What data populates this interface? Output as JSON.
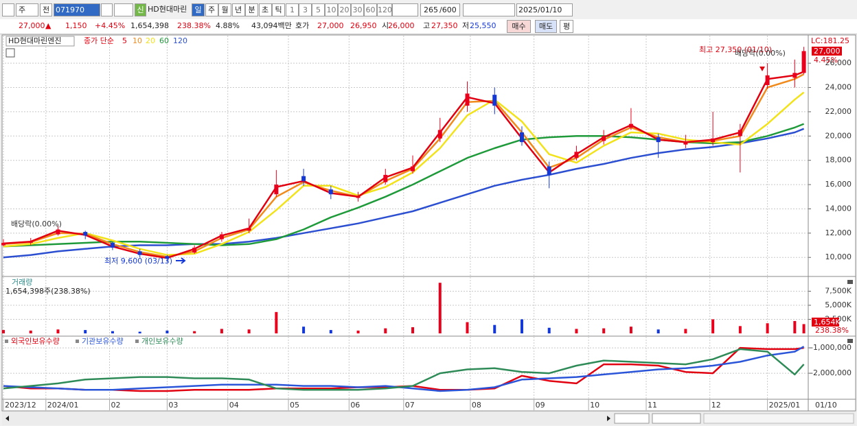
{
  "toolbar": {
    "tabs": [
      "주",
      "전"
    ],
    "code": "071970",
    "market_tag": "신",
    "name": "HD현대마린",
    "periods": [
      "일",
      "주",
      "월",
      "년",
      "분",
      "초",
      "틱"
    ],
    "intervals": [
      "1",
      "3",
      "5",
      "10",
      "20",
      "30",
      "60",
      "120"
    ],
    "count": "265",
    "max": "/600",
    "date": "2025/01/10"
  },
  "quote_bar": {
    "price": "27,000",
    "arrow": "▲",
    "change": "1,150",
    "change_rate": "+4.45%",
    "volume": "1,654,398",
    "volume_ratio": "238.38%",
    "turnover": "4.88%",
    "amount": "43,094백만",
    "ask_label": "호가",
    "ask": "27,000",
    "bid": "26,950",
    "open_label": "시",
    "open": "26,000",
    "high_label": "고",
    "high": "27,350",
    "low_label": "저",
    "low": "25,550",
    "buttons": [
      "매수",
      "매도",
      "평"
    ]
  },
  "chart_data": [
    {
      "type": "candlestick",
      "title": "HD현대마린엔진",
      "ma_label": "종가 단순",
      "x": [
        0,
        9,
        18,
        27,
        36,
        45,
        54,
        63,
        72,
        81,
        90,
        99,
        108,
        117,
        126,
        135,
        144,
        153,
        162,
        171,
        180,
        189,
        198,
        207,
        216,
        225,
        234,
        243,
        252,
        261,
        264
      ],
      "open": [
        11000,
        11200,
        11900,
        12100,
        11200,
        10500,
        10100,
        10400,
        11500,
        12200,
        15200,
        16700,
        15600,
        14900,
        16200,
        17100,
        19800,
        22500,
        23400,
        20300,
        17500,
        18200,
        19600,
        20700,
        19900,
        19300,
        19500,
        20000,
        24200,
        24800,
        25200
      ],
      "high": [
        11500,
        11600,
        12600,
        12200,
        11300,
        10700,
        10200,
        11000,
        12100,
        13200,
        17200,
        17300,
        15900,
        15400,
        17300,
        18400,
        21500,
        24500,
        24000,
        20800,
        17900,
        19200,
        20500,
        22300,
        20200,
        20100,
        22000,
        21000,
        26000,
        26300,
        27350
      ],
      "low": [
        10900,
        11000,
        11800,
        11500,
        10600,
        10000,
        9600,
        10300,
        11300,
        12000,
        15000,
        15900,
        14800,
        14600,
        16000,
        16900,
        19500,
        22000,
        21800,
        19200,
        15700,
        18000,
        19300,
        20500,
        18200,
        19000,
        19200,
        17000,
        23900,
        24000,
        25100
      ],
      "close": [
        11200,
        11300,
        12300,
        11800,
        10800,
        10200,
        9900,
        10800,
        11900,
        12400,
        16000,
        16300,
        15200,
        15000,
        16800,
        17500,
        20500,
        23500,
        22500,
        19500,
        16800,
        18700,
        20000,
        21000,
        19500,
        19500,
        19800,
        20500,
        25000,
        25200,
        27000
      ],
      "up_color": "#e8001c",
      "down_color": "#1438d6",
      "series": [
        {
          "name": "5",
          "color": "#e00010",
          "values": [
            11150,
            11300,
            12200,
            11850,
            10900,
            10300,
            9950,
            10700,
            11800,
            12400,
            15800,
            16300,
            15300,
            15000,
            16600,
            17400,
            20300,
            23200,
            22700,
            19800,
            17000,
            18500,
            19900,
            20900,
            19700,
            19500,
            19700,
            20300,
            24700,
            25000,
            25300
          ]
        },
        {
          "name": "10",
          "color": "#f08a1c",
          "values": [
            11100,
            11250,
            12000,
            11950,
            11100,
            10450,
            10050,
            10500,
            11600,
            12300,
            15000,
            16200,
            15500,
            15000,
            16300,
            17300,
            19800,
            22800,
            22900,
            20300,
            17400,
            18200,
            19700,
            20700,
            19900,
            19500,
            19600,
            20000,
            24000,
            24700,
            25100
          ]
        },
        {
          "name": "20",
          "color": "#f2e21a",
          "values": [
            10900,
            11100,
            11600,
            12000,
            11400,
            10700,
            10200,
            10300,
            11100,
            12100,
            13900,
            15900,
            15900,
            15100,
            15800,
            17000,
            19000,
            21700,
            23000,
            21200,
            18500,
            17800,
            19200,
            20300,
            20200,
            19700,
            19500,
            19300,
            21000,
            23000,
            23600
          ]
        },
        {
          "name": "60",
          "color": "#1f9a3a",
          "values": [
            10900,
            11000,
            11100,
            11200,
            11300,
            11300,
            11200,
            11100,
            11000,
            11100,
            11500,
            12300,
            13300,
            14100,
            15000,
            16000,
            17100,
            18200,
            19000,
            19700,
            19900,
            20000,
            20000,
            19900,
            19700,
            19500,
            19400,
            19500,
            20000,
            20700,
            21000
          ]
        },
        {
          "name": "120",
          "color": "#2b4fd0",
          "values": [
            10000,
            10200,
            10500,
            10700,
            10900,
            11000,
            11000,
            11100,
            11100,
            11300,
            11600,
            12000,
            12400,
            12800,
            13300,
            13800,
            14500,
            15200,
            15900,
            16400,
            16800,
            17300,
            17700,
            18200,
            18600,
            18900,
            19100,
            19400,
            19800,
            20300,
            20600
          ]
        }
      ],
      "xlim": [
        0,
        265
      ],
      "ylim": [
        8600,
        28100
      ],
      "yticks": [
        {
          "value": 10000,
          "label": "10,000"
        },
        {
          "value": 12000,
          "label": "12,000"
        },
        {
          "value": 14000,
          "label": "14,000"
        },
        {
          "value": 16000,
          "label": "16,000"
        },
        {
          "value": 18000,
          "label": "18,000"
        },
        {
          "value": 20000,
          "label": "20,000"
        },
        {
          "value": 22000,
          "label": "22,000"
        },
        {
          "value": 24000,
          "label": "24,000"
        },
        {
          "value": 26000,
          "label": "26,000"
        }
      ],
      "grid": true,
      "annotations": [
        "최고 27,350 (01/10)",
        "배당락(0.00%)",
        "배당락(0.00%)",
        "최저 9,600 (03/13)"
      ],
      "lc_label": "LC:181.25",
      "last_price_label": "27,000",
      "change_label": "4.45%"
    },
    {
      "type": "bar",
      "title": "거래량",
      "subtitle": "1,654,398주(238.38%)",
      "x": [
        0,
        9,
        18,
        27,
        36,
        45,
        54,
        63,
        72,
        81,
        90,
        99,
        108,
        117,
        126,
        135,
        144,
        153,
        162,
        171,
        180,
        189,
        198,
        207,
        216,
        225,
        234,
        243,
        252,
        261,
        264
      ],
      "values": [
        600,
        500,
        700,
        600,
        400,
        300,
        500,
        400,
        800,
        700,
        3800,
        1200,
        600,
        500,
        900,
        1100,
        9000,
        2000,
        1500,
        2500,
        1000,
        800,
        900,
        1200,
        700,
        800,
        2500,
        1300,
        1800,
        2200,
        1654
      ],
      "xlim": [
        0,
        265
      ],
      "ylim": [
        0,
        10000
      ],
      "yticks": [
        {
          "value": 2500,
          "label": "2,500K"
        },
        {
          "value": 5000,
          "label": "5,000K"
        },
        {
          "value": 7500,
          "label": "7,500K"
        }
      ],
      "grid": true,
      "last_label": "1,654K",
      "ratio_label": "238.38%"
    },
    {
      "type": "line",
      "x": [
        0,
        9,
        18,
        27,
        36,
        45,
        54,
        63,
        72,
        81,
        90,
        99,
        108,
        117,
        126,
        135,
        144,
        153,
        162,
        171,
        180,
        189,
        198,
        207,
        216,
        225,
        234,
        243,
        252,
        261,
        264
      ],
      "series": [
        {
          "name": "외국인보유수량",
          "color": "#e00010",
          "values": [
            -2500000,
            -2600000,
            -2600000,
            -2650000,
            -2650000,
            -2700000,
            -2700000,
            -2650000,
            -2650000,
            -2650000,
            -2600000,
            -2600000,
            -2600000,
            -2550000,
            -2550000,
            -2500000,
            -2650000,
            -2650000,
            -2600000,
            -2100000,
            -2300000,
            -2400000,
            -1650000,
            -1650000,
            -1700000,
            -1950000,
            -2000000,
            -1000000,
            -1050000,
            -1050000,
            -1000000
          ]
        },
        {
          "name": "기관보유수량",
          "color": "#2b55d8",
          "values": [
            -2500000,
            -2550000,
            -2600000,
            -2650000,
            -2650000,
            -2600000,
            -2550000,
            -2500000,
            -2450000,
            -2450000,
            -2450000,
            -2500000,
            -2500000,
            -2550000,
            -2500000,
            -2600000,
            -2700000,
            -2650000,
            -2550000,
            -2250000,
            -2200000,
            -2150000,
            -2050000,
            -1950000,
            -1850000,
            -1800000,
            -1700000,
            -1550000,
            -1300000,
            -1150000,
            -950000
          ]
        },
        {
          "name": "개인보유수량",
          "color": "#2e8b57",
          "values": [
            -2600000,
            -2500000,
            -2400000,
            -2250000,
            -2200000,
            -2150000,
            -2150000,
            -2200000,
            -2200000,
            -2250000,
            -2600000,
            -2650000,
            -2650000,
            -2650000,
            -2600000,
            -2500000,
            -2000000,
            -1850000,
            -1800000,
            -1950000,
            -2000000,
            -1700000,
            -1500000,
            -1550000,
            -1600000,
            -1650000,
            -1450000,
            -1050000,
            -1150000,
            -2050000,
            -1650000
          ]
        }
      ],
      "xlim": [
        0,
        265
      ],
      "ylim": [
        -2970000,
        -620000
      ],
      "yticks": [
        {
          "value": -1000000,
          "label": "-1,000,000"
        },
        {
          "value": -2000000,
          "label": "-2,000,000"
        }
      ],
      "xticks": [
        {
          "value": 0,
          "label": "2023/12"
        },
        {
          "value": 14,
          "label": "2024/01"
        },
        {
          "value": 35,
          "label": "02"
        },
        {
          "value": 54,
          "label": "03"
        },
        {
          "value": 74,
          "label": "04"
        },
        {
          "value": 94,
          "label": "05"
        },
        {
          "value": 114,
          "label": "06"
        },
        {
          "value": 132,
          "label": "07"
        },
        {
          "value": 154,
          "label": "08"
        },
        {
          "value": 175,
          "label": "09"
        },
        {
          "value": 193,
          "label": "10"
        },
        {
          "value": 212,
          "label": "11"
        },
        {
          "value": 233,
          "label": "12"
        },
        {
          "value": 252,
          "label": "2025/01"
        }
      ],
      "end_label": "01/10",
      "grid": true
    }
  ]
}
